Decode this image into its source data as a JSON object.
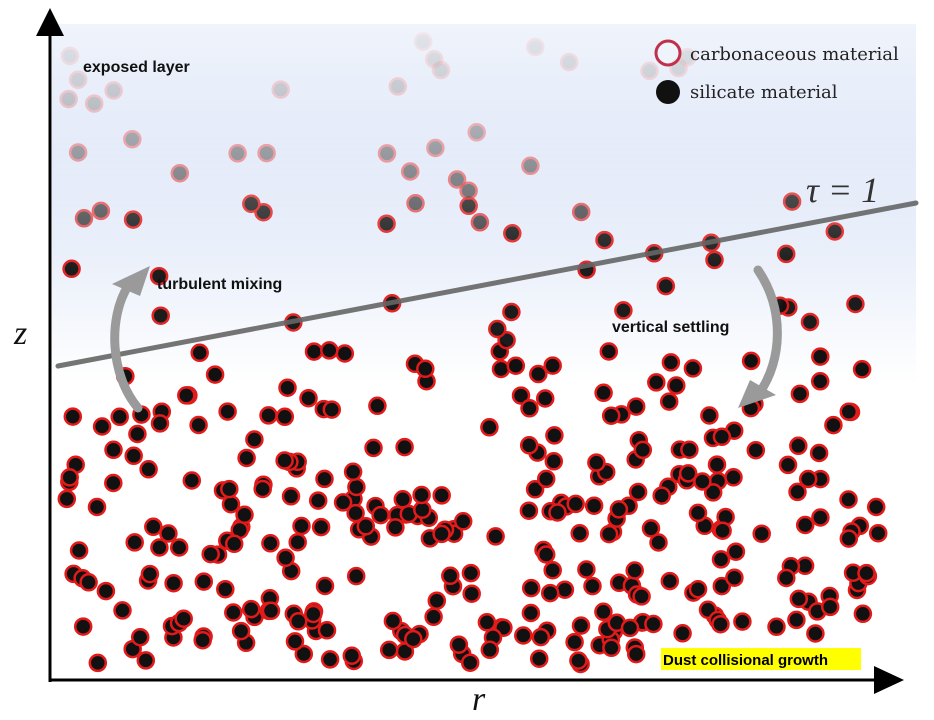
{
  "labels": {
    "exposed_layer": "exposed layer",
    "turbulent_mixing": "turbulent mixing",
    "vertical_settling": "vertical settling",
    "tau": "τ = 1",
    "z_axis": "z",
    "r_axis": "r",
    "growth": "Dust collisional growth"
  },
  "legend": {
    "carbonaceous": "carbonaceous material",
    "silicate": "silicate material"
  },
  "colors": {
    "carbonaceous_ring": "#c0304a",
    "silicate_fill": "#111111",
    "gradient_top": "#c3d3f1",
    "gradient_bottom": "#ffffff",
    "tau_line": "#666666",
    "arrow": "#9a9a9a",
    "growth_highlight": "#ffff00"
  }
}
